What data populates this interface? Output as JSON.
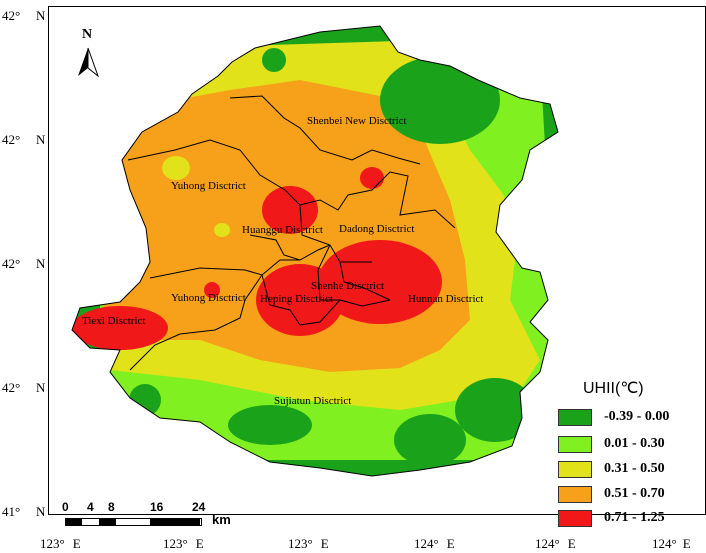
{
  "map": {
    "north_label": "N",
    "lat_ticks": [
      {
        "deg": "42°",
        "hem": "N"
      },
      {
        "deg": "42°",
        "hem": "N"
      },
      {
        "deg": "42°",
        "hem": "N"
      },
      {
        "deg": "42°",
        "hem": "N"
      },
      {
        "deg": "41°",
        "hem": "N"
      }
    ],
    "lon_ticks": [
      {
        "deg": "123°",
        "hem": "E"
      },
      {
        "deg": "123°",
        "hem": "E"
      },
      {
        "deg": "123°",
        "hem": "E"
      },
      {
        "deg": "124°",
        "hem": "E"
      },
      {
        "deg": "124°",
        "hem": "E"
      },
      {
        "deg": "124°",
        "hem": "E"
      }
    ],
    "districts": [
      "Shenbei New Disctrict",
      "Yuhong Disctrict",
      "Huanggu Disctrict",
      "Dadong Disctrict",
      "Shenhe Disctrict",
      "Heping Disctrict",
      "Yuhong Disctrict",
      "Tiexi Disctrict",
      "Hunnan Disctrict",
      "Sujiatun Disctrict"
    ],
    "scale_bar": {
      "labels": [
        "0",
        "4",
        "8",
        "16",
        "24"
      ],
      "unit": "km"
    }
  },
  "legend": {
    "title": "UHII(℃)",
    "items": [
      {
        "label": "-0.39 - 0.00",
        "color": "#1aa31a"
      },
      {
        "label": "0.01 - 0.30",
        "color": "#80f020"
      },
      {
        "label": "0.31 - 0.50",
        "color": "#e2e21a"
      },
      {
        "label": "0.51 - 0.70",
        "color": "#f7a01a"
      },
      {
        "label": "0.71 - 1.25",
        "color": "#f01818"
      }
    ]
  }
}
